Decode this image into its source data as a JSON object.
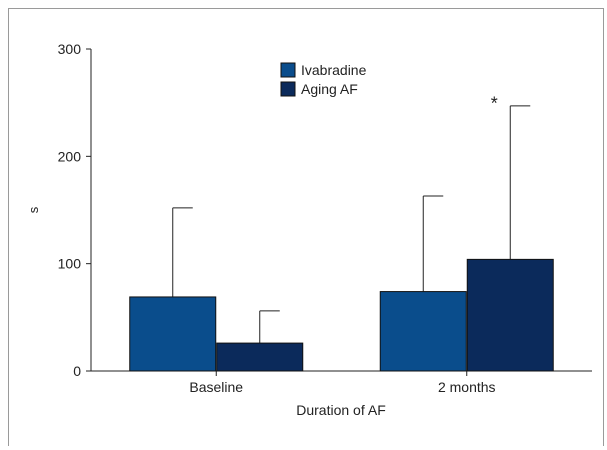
{
  "chart_data": {
    "type": "bar",
    "title": "",
    "xlabel": "Duration of AF",
    "ylabel": "s",
    "ylim": [
      0,
      300
    ],
    "yticks": [
      0,
      100,
      200,
      300
    ],
    "grid": false,
    "legend_position": "top-center",
    "categories": [
      "Baseline",
      "2 months"
    ],
    "series": [
      {
        "name": "Ivabradine",
        "values": [
          69,
          74
        ],
        "error_upper": [
          152,
          163
        ],
        "color": "#0a4d8c"
      },
      {
        "name": "Aging AF",
        "values": [
          26,
          104
        ],
        "error_upper": [
          56,
          247
        ],
        "color": "#0b2a5b"
      }
    ],
    "annotations": [
      {
        "text": "*",
        "category": "2 months",
        "series": "Aging AF",
        "value": 255
      }
    ]
  }
}
